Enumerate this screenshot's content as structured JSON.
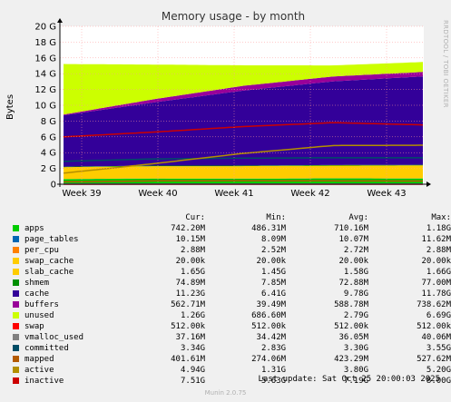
{
  "chart_data": {
    "type": "area",
    "title": "Memory usage - by month",
    "ylabel": "Bytes",
    "yticks": [
      "0",
      "2 G",
      "4 G",
      "6 G",
      "8 G",
      "10 G",
      "12 G",
      "14 G",
      "16 G",
      "18 G",
      "20 G"
    ],
    "ylim": [
      0,
      20
    ],
    "xticks": [
      "Week 39",
      "Week 40",
      "Week 41",
      "Week 42",
      "Week 43"
    ],
    "stack_order": [
      "apps",
      "page_tables",
      "per_cpu",
      "swap_cache",
      "slab_cache",
      "shmem",
      "cache",
      "buffers",
      "unused"
    ],
    "line_series": [
      "swap",
      "vmalloc_used",
      "committed",
      "mapped",
      "active",
      "inactive"
    ],
    "series_profiles_gb": {
      "apps": [
        0.65,
        0.72,
        0.7,
        0.74,
        0.72
      ],
      "page_tables": [
        0.01,
        0.01,
        0.01,
        0.01,
        0.01
      ],
      "per_cpu": [
        0.003,
        0.003,
        0.003,
        0.003,
        0.003
      ],
      "swap_cache": [
        0.0,
        0.0,
        0.0,
        0.0,
        0.0
      ],
      "slab_cache": [
        1.5,
        1.55,
        1.58,
        1.6,
        1.65
      ],
      "shmem": [
        0.06,
        0.07,
        0.07,
        0.075,
        0.075
      ],
      "cache": [
        6.5,
        8.0,
        9.5,
        10.6,
        11.2
      ],
      "buffers": [
        0.1,
        0.4,
        0.6,
        0.62,
        0.56
      ],
      "unused": [
        6.4,
        4.4,
        2.6,
        1.4,
        1.26
      ],
      "swap": [
        0.0005,
        0.0005,
        0.0005,
        0.0005,
        0.0005
      ],
      "vmalloc_used": [
        0.035,
        0.036,
        0.036,
        0.037,
        0.037
      ],
      "committed": [
        2.9,
        3.2,
        3.3,
        3.35,
        3.34
      ],
      "mapped": [
        0.3,
        0.42,
        0.45,
        0.42,
        0.4
      ],
      "active": [
        1.4,
        2.6,
        3.9,
        4.9,
        4.94
      ],
      "inactive": [
        6.0,
        6.6,
        7.3,
        7.8,
        7.51
      ]
    },
    "grid": true,
    "legend": "below"
  },
  "legend_header": {
    "cur": "Cur:",
    "min": "Min:",
    "avg": "Avg:",
    "max": "Max:"
  },
  "legend": [
    {
      "name": "apps",
      "color": "#00cc00",
      "cur": "742.20M",
      "min": "486.31M",
      "avg": "710.16M",
      "max": "1.18G"
    },
    {
      "name": "page_tables",
      "color": "#0066b3",
      "cur": "10.15M",
      "min": "8.09M",
      "avg": "10.07M",
      "max": "11.62M"
    },
    {
      "name": "per_cpu",
      "color": "#ff8000",
      "cur": "2.88M",
      "min": "2.52M",
      "avg": "2.72M",
      "max": "2.88M"
    },
    {
      "name": "swap_cache",
      "color": "#ffcc00",
      "cur": "20.00k",
      "min": "20.00k",
      "avg": "20.00k",
      "max": "20.00k"
    },
    {
      "name": "slab_cache",
      "color": "#ffcc00",
      "cur": "1.65G",
      "min": "1.45G",
      "avg": "1.58G",
      "max": "1.66G"
    },
    {
      "name": "shmem",
      "color": "#008f00",
      "cur": "74.89M",
      "min": "7.85M",
      "avg": "72.88M",
      "max": "77.00M"
    },
    {
      "name": "cache",
      "color": "#330099",
      "cur": "11.23G",
      "min": "6.41G",
      "avg": "9.78G",
      "max": "11.78G"
    },
    {
      "name": "buffers",
      "color": "#990099",
      "cur": "562.71M",
      "min": "39.49M",
      "avg": "588.78M",
      "max": "738.62M"
    },
    {
      "name": "unused",
      "color": "#ccff00",
      "cur": "1.26G",
      "min": "686.60M",
      "avg": "2.79G",
      "max": "6.69G"
    },
    {
      "name": "swap",
      "color": "#ff0000",
      "cur": "512.00k",
      "min": "512.00k",
      "avg": "512.00k",
      "max": "512.00k"
    },
    {
      "name": "vmalloc_used",
      "color": "#808080",
      "cur": "37.16M",
      "min": "34.42M",
      "avg": "36.05M",
      "max": "40.06M"
    },
    {
      "name": "committed",
      "color": "#004d66",
      "cur": "3.34G",
      "min": "2.83G",
      "avg": "3.30G",
      "max": "3.55G"
    },
    {
      "name": "mapped",
      "color": "#b35a00",
      "cur": "401.61M",
      "min": "274.06M",
      "avg": "423.29M",
      "max": "527.62M"
    },
    {
      "name": "active",
      "color": "#b38f00",
      "cur": "4.94G",
      "min": "1.31G",
      "avg": "3.80G",
      "max": "5.20G"
    },
    {
      "name": "inactive",
      "color": "#cc0000",
      "cur": "7.51G",
      "min": "5.63G",
      "avg": "7.19G",
      "max": "8.00G"
    }
  ],
  "last_update": "Last update:  Sat Oct 25 20:00:03 2025",
  "footer": "Munin 2.0.75",
  "side_label": "RRDTOOL / TOBI OETIKER"
}
